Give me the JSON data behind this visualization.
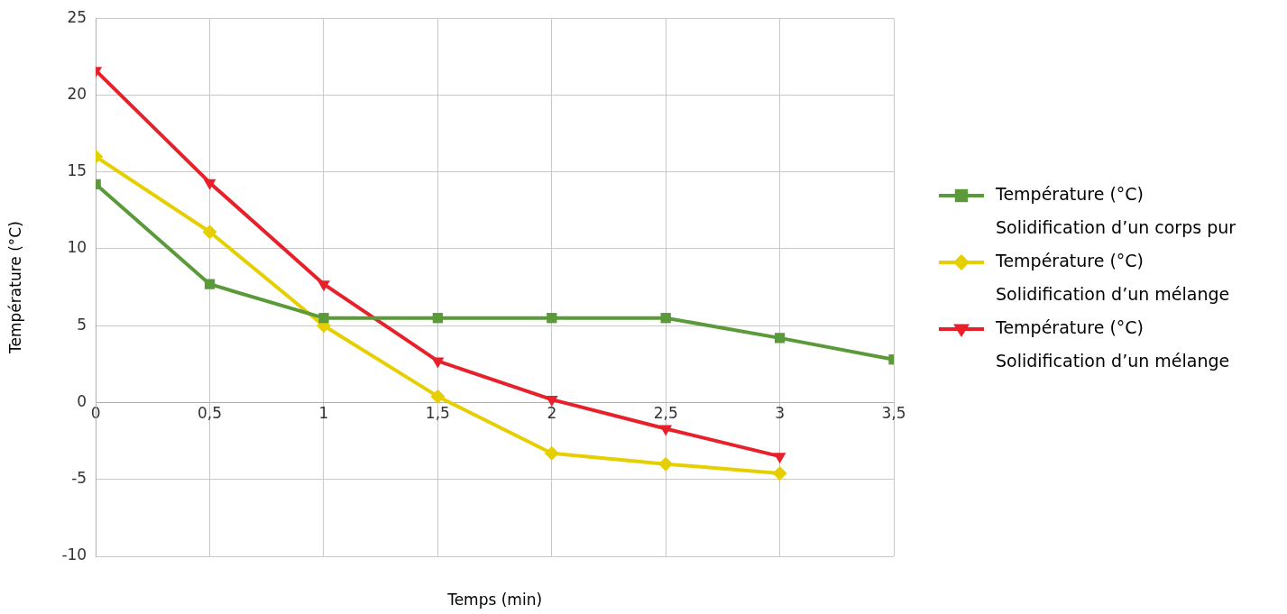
{
  "chart_data": {
    "type": "line",
    "xlabel": "Temps (min)",
    "ylabel": "Température (°C)",
    "xlim": [
      0,
      3.5
    ],
    "xticks": [
      0,
      {
        "value": 0.5,
        "label": "0,5"
      },
      1,
      {
        "value": 1.5,
        "label": "1,5"
      },
      2,
      {
        "value": 2.5,
        "label": "2,5"
      },
      3,
      {
        "value": 3.5,
        "label": "3,5"
      }
    ],
    "ylim": [
      -10,
      25
    ],
    "yticks": [
      -10,
      -5,
      0,
      5,
      10,
      15,
      20,
      25
    ],
    "grid": true,
    "legend": "right",
    "series": [
      {
        "name": "Température (°C)\nSolidification d’un corps pur",
        "color": "#5b9a3b",
        "marker": "square",
        "x": [
          0,
          0.5,
          1,
          1.5,
          2,
          2.5,
          3,
          3.5
        ],
        "values": [
          14.2,
          7.7,
          5.5,
          5.5,
          5.5,
          5.5,
          4.2,
          2.8
        ]
      },
      {
        "name": "Température (°C)\nSolidification d’un mélange",
        "color": "#e6cf00",
        "marker": "diamond",
        "x": [
          0,
          0.5,
          1,
          1.5,
          2,
          2.5,
          3
        ],
        "values": [
          16.0,
          11.1,
          5.0,
          0.4,
          -3.3,
          -4.0,
          -4.6
        ]
      },
      {
        "name": "Température (°C)\nSolidification d’un mélange",
        "color": "#e8202a",
        "marker": "triangle-down",
        "x": [
          0,
          0.5,
          1,
          1.5,
          2,
          2.5,
          3
        ],
        "values": [
          21.6,
          14.3,
          7.7,
          2.7,
          0.2,
          -1.7,
          -3.5
        ]
      }
    ]
  }
}
